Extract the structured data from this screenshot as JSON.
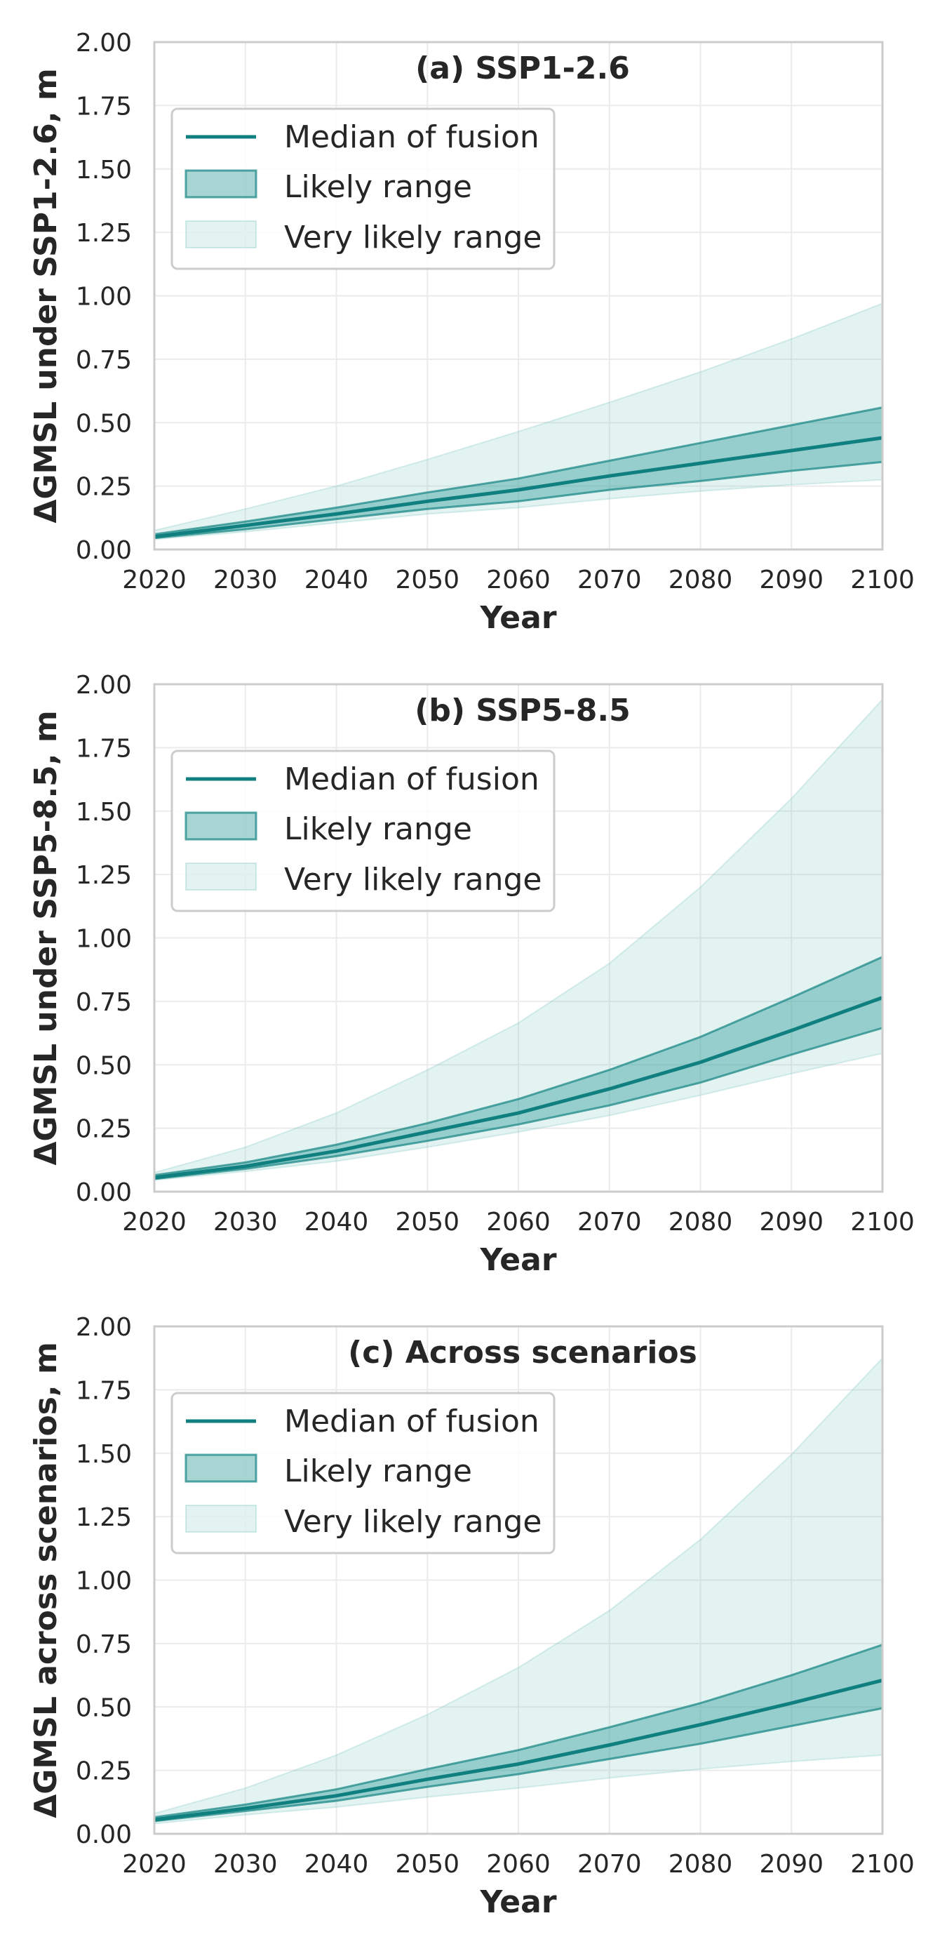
{
  "colors": {
    "median": "#0f7f7f",
    "likely_fill": "#2a9a98",
    "likely_edge": "#1f8a88",
    "very_likely_fill": "#6fc1bb",
    "grid": "#ebebeb",
    "frame": "#cccccc",
    "text": "#262626"
  },
  "legend": {
    "median": "Median of fusion",
    "likely": "Likely range",
    "very_likely": "Very likely range"
  },
  "chart_data": [
    {
      "type": "area",
      "title": "(a) SSP1-2.6",
      "xlabel": "Year",
      "ylabel": "ΔGMSL under SSP1-2.6, m",
      "xlim": [
        2020,
        2100
      ],
      "ylim": [
        0,
        2.0
      ],
      "grid": true,
      "legend_position": "upper-left",
      "x_ticks": [
        "2020",
        "2030",
        "2040",
        "2050",
        "2060",
        "2070",
        "2080",
        "2090",
        "2100"
      ],
      "y_ticks": [
        "0.00",
        "0.25",
        "0.50",
        "0.75",
        "1.00",
        "1.25",
        "1.50",
        "1.75",
        "2.00"
      ],
      "x": [
        2020,
        2030,
        2040,
        2050,
        2060,
        2070,
        2080,
        2090,
        2100
      ],
      "series": [
        {
          "name": "Median of fusion",
          "values": [
            0.05,
            0.095,
            0.14,
            0.19,
            0.235,
            0.29,
            0.34,
            0.39,
            0.44
          ]
        },
        {
          "name": "Likely range",
          "lower": [
            0.045,
            0.08,
            0.12,
            0.16,
            0.19,
            0.235,
            0.27,
            0.31,
            0.345
          ],
          "upper": [
            0.06,
            0.11,
            0.165,
            0.225,
            0.28,
            0.35,
            0.42,
            0.49,
            0.56
          ]
        },
        {
          "name": "Very likely range",
          "lower": [
            0.04,
            0.07,
            0.105,
            0.14,
            0.165,
            0.2,
            0.23,
            0.255,
            0.275
          ],
          "upper": [
            0.075,
            0.16,
            0.25,
            0.355,
            0.465,
            0.58,
            0.7,
            0.83,
            0.97
          ]
        }
      ]
    },
    {
      "type": "area",
      "title": "(b) SSP5-8.5",
      "xlabel": "Year",
      "ylabel": "ΔGMSL under SSP5-8.5, m",
      "xlim": [
        2020,
        2100
      ],
      "ylim": [
        0,
        2.0
      ],
      "grid": true,
      "legend_position": "upper-left",
      "x_ticks": [
        "2020",
        "2030",
        "2040",
        "2050",
        "2060",
        "2070",
        "2080",
        "2090",
        "2100"
      ],
      "y_ticks": [
        "0.00",
        "0.25",
        "0.50",
        "0.75",
        "1.00",
        "1.25",
        "1.50",
        "1.75",
        "2.00"
      ],
      "x": [
        2020,
        2030,
        2040,
        2050,
        2060,
        2070,
        2080,
        2090,
        2100
      ],
      "series": [
        {
          "name": "Median of fusion",
          "values": [
            0.055,
            0.1,
            0.16,
            0.235,
            0.31,
            0.405,
            0.51,
            0.635,
            0.765
          ]
        },
        {
          "name": "Likely range",
          "lower": [
            0.05,
            0.09,
            0.14,
            0.2,
            0.265,
            0.34,
            0.43,
            0.54,
            0.645
          ],
          "upper": [
            0.065,
            0.115,
            0.185,
            0.27,
            0.365,
            0.48,
            0.61,
            0.765,
            0.925
          ]
        },
        {
          "name": "Very likely range",
          "lower": [
            0.045,
            0.08,
            0.12,
            0.175,
            0.235,
            0.3,
            0.38,
            0.465,
            0.545
          ],
          "upper": [
            0.075,
            0.175,
            0.31,
            0.48,
            0.665,
            0.9,
            1.2,
            1.55,
            1.94
          ]
        }
      ]
    },
    {
      "type": "area",
      "title": "(c) Across scenarios",
      "xlabel": "Year",
      "ylabel": "ΔGMSL across scenarios, m",
      "xlim": [
        2020,
        2100
      ],
      "ylim": [
        0,
        2.0
      ],
      "grid": true,
      "legend_position": "upper-left",
      "x_ticks": [
        "2020",
        "2030",
        "2040",
        "2050",
        "2060",
        "2070",
        "2080",
        "2090",
        "2100"
      ],
      "y_ticks": [
        "0.00",
        "0.25",
        "0.50",
        "0.75",
        "1.00",
        "1.25",
        "1.50",
        "1.75",
        "2.00"
      ],
      "x": [
        2020,
        2030,
        2040,
        2050,
        2060,
        2070,
        2080,
        2090,
        2100
      ],
      "series": [
        {
          "name": "Median of fusion",
          "values": [
            0.055,
            0.1,
            0.15,
            0.215,
            0.275,
            0.35,
            0.43,
            0.515,
            0.605
          ]
        },
        {
          "name": "Likely range",
          "lower": [
            0.05,
            0.09,
            0.13,
            0.185,
            0.235,
            0.295,
            0.355,
            0.425,
            0.495
          ],
          "upper": [
            0.065,
            0.115,
            0.175,
            0.255,
            0.33,
            0.42,
            0.515,
            0.625,
            0.745
          ]
        },
        {
          "name": "Very likely range",
          "lower": [
            0.04,
            0.075,
            0.105,
            0.145,
            0.18,
            0.22,
            0.255,
            0.285,
            0.31
          ],
          "upper": [
            0.08,
            0.18,
            0.31,
            0.47,
            0.655,
            0.88,
            1.16,
            1.495,
            1.875
          ]
        }
      ]
    }
  ]
}
